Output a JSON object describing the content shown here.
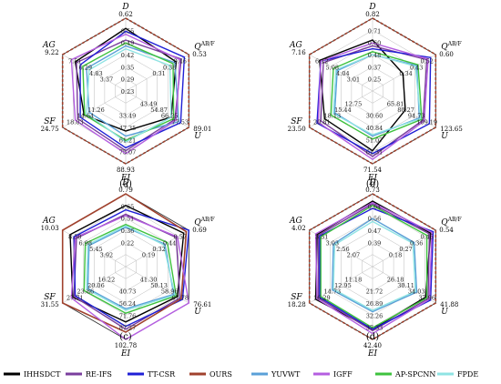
{
  "legend": [
    {
      "name": "IHHSDCT",
      "color": "#000000"
    },
    {
      "name": "RE-IFS",
      "color": "#7a3e9d"
    },
    {
      "name": "TT-CSR",
      "color": "#1f1fd6"
    },
    {
      "name": "OURS",
      "color": "#a0412d"
    },
    {
      "name": "YUVWT",
      "color": "#5aa0d8"
    },
    {
      "name": "IGFF",
      "color": "#b45ee0"
    },
    {
      "name": "AP-SPCNN",
      "color": "#3ec23e"
    },
    {
      "name": "FPDE",
      "color": "#8fe3e3"
    }
  ],
  "axis_names": [
    "D",
    "Q^AB/F",
    "U",
    "EI",
    "SF",
    "AG"
  ],
  "chart_data": [
    {
      "type": "radar",
      "panel_label": "(a)",
      "axes": [
        "D",
        "Q^AB/F",
        "U",
        "EI",
        "SF",
        "AG"
      ],
      "outer_labels": [
        "0.62",
        "0.53",
        "89.01",
        "88.93",
        "24.75",
        "9.22"
      ],
      "ring_labels": {
        "D": [
          "0.55",
          "0.49",
          "0.42",
          "0.35",
          "0.29",
          "0.23"
        ],
        "Q^AB/F": [
          "0.46",
          "0.38",
          "0.31"
        ],
        "U": [
          "77.53",
          "66.25",
          "54.87",
          "43.49"
        ],
        "EI": [
          "75.07",
          "61.21",
          "47.35",
          "33.49"
        ],
        "SF": [
          "18.03",
          "14.64",
          "11.26"
        ],
        "AG": [
          "7.51",
          "6.29",
          "4.83",
          "3.37"
        ]
      },
      "series": [
        {
          "name": "IHHSDCT",
          "values": [
            0.86,
            0.8,
            0.72,
            0.55,
            0.66,
            0.8
          ]
        },
        {
          "name": "RE-IFS",
          "values": [
            0.7,
            0.88,
            0.78,
            0.82,
            0.76,
            0.78
          ]
        },
        {
          "name": "TT-CSR",
          "values": [
            0.82,
            0.93,
            0.87,
            0.78,
            0.72,
            0.72
          ]
        },
        {
          "name": "OURS",
          "values": [
            1.0,
            1.0,
            1.0,
            1.0,
            1.0,
            1.0
          ]
        },
        {
          "name": "YUVWT",
          "values": [
            0.62,
            0.78,
            0.84,
            0.62,
            0.58,
            0.62
          ]
        },
        {
          "name": "IGFF",
          "values": [
            0.78,
            0.86,
            0.8,
            0.86,
            0.8,
            0.86
          ]
        },
        {
          "name": "AP-SPCNN",
          "values": [
            0.66,
            0.75,
            0.76,
            0.68,
            0.65,
            0.68
          ]
        },
        {
          "name": "FPDE",
          "values": [
            0.58,
            0.7,
            0.72,
            0.7,
            0.62,
            0.58
          ]
        }
      ]
    },
    {
      "type": "radar",
      "panel_label": "(b)",
      "axes": [
        "D",
        "Q^AB/F",
        "U",
        "EI",
        "SF",
        "AG"
      ],
      "outer_labels": [
        "0.82",
        "0.60",
        "123.65",
        "71.54",
        "23.50",
        "7.16"
      ],
      "ring_labels": {
        "D": [
          "0.71",
          "0.60",
          "0.48",
          "0.37",
          "0.25"
        ],
        "Q^AB/F": [
          "0.52",
          "0.43",
          "0.34"
        ],
        "U": [
          "109.19",
          "94.73",
          "80.27",
          "65.81"
        ],
        "EI": [
          "61.31",
          "51.07",
          "40.84",
          "30.60"
        ],
        "SF": [
          "20.81",
          "18.13",
          "15.44",
          "12.75"
        ],
        "AG": [
          "6.12",
          "5.08",
          "4.04",
          "3.01"
        ]
      },
      "series": [
        {
          "name": "IHHSDCT",
          "values": [
            0.7,
            0.48,
            0.52,
            0.82,
            0.76,
            0.84
          ]
        },
        {
          "name": "RE-IFS",
          "values": [
            0.62,
            0.86,
            0.8,
            0.9,
            0.82,
            0.78
          ]
        },
        {
          "name": "TT-CSR",
          "values": [
            0.58,
            0.92,
            0.9,
            0.86,
            0.88,
            0.82
          ]
        },
        {
          "name": "OURS",
          "values": [
            1.0,
            1.0,
            1.0,
            1.0,
            1.0,
            1.0
          ]
        },
        {
          "name": "YUVWT",
          "values": [
            0.5,
            0.7,
            0.74,
            0.62,
            0.6,
            0.56
          ]
        },
        {
          "name": "IGFF",
          "values": [
            0.66,
            0.88,
            0.82,
            0.94,
            0.86,
            0.82
          ]
        },
        {
          "name": "AP-SPCNN",
          "values": [
            0.54,
            0.72,
            0.78,
            0.66,
            0.66,
            0.62
          ]
        },
        {
          "name": "FPDE",
          "values": [
            0.5,
            0.68,
            0.76,
            0.6,
            0.62,
            0.58
          ]
        }
      ]
    },
    {
      "type": "radar",
      "panel_label": "(c)",
      "axes": [
        "D",
        "Q^AB/F",
        "U",
        "EI",
        "SF",
        "AG"
      ],
      "outer_labels": [
        "0.79",
        "0.69",
        "76.61",
        "102.78",
        "31.55",
        "10.03"
      ],
      "ring_labels": {
        "D": [
          "0.65",
          "0.51",
          "0.36",
          "0.22"
        ],
        "Q^AB/F": [
          "0.57",
          "0.44",
          "0.32",
          "0.19"
        ],
        "U": [
          "67.78",
          "58.96",
          "50.13",
          "41.30"
        ],
        "EI": [
          "87.27",
          "71.76",
          "56.24",
          "40.73"
        ],
        "SF": [
          "27.71",
          "23.86",
          "20.06",
          "16.22"
        ],
        "AG": [
          "8.50",
          "6.98",
          "5.45",
          "3.92"
        ]
      },
      "series": [
        {
          "name": "IHHSDCT",
          "values": [
            0.84,
            0.92,
            0.82,
            0.76,
            0.84,
            0.88
          ]
        },
        {
          "name": "RE-IFS",
          "values": [
            0.72,
            0.8,
            0.86,
            0.86,
            0.82,
            0.78
          ]
        },
        {
          "name": "TT-CSR",
          "values": [
            0.78,
            1.0,
            0.9,
            0.82,
            0.8,
            0.82
          ]
        },
        {
          "name": "OURS",
          "values": [
            1.0,
            0.96,
            0.88,
            0.9,
            1.0,
            1.0
          ]
        },
        {
          "name": "YUVWT",
          "values": [
            0.54,
            0.62,
            0.76,
            0.58,
            0.6,
            0.58
          ]
        },
        {
          "name": "IGFF",
          "values": [
            0.7,
            0.82,
            1.0,
            1.0,
            0.86,
            0.8
          ]
        },
        {
          "name": "AP-SPCNN",
          "values": [
            0.58,
            0.66,
            0.8,
            0.64,
            0.66,
            0.64
          ]
        },
        {
          "name": "FPDE",
          "values": [
            0.56,
            0.6,
            0.78,
            0.6,
            0.62,
            0.6
          ]
        }
      ]
    },
    {
      "type": "radar",
      "panel_label": "(d)",
      "axes": [
        "D",
        "Q^AB/F",
        "U",
        "EI",
        "SF",
        "AG"
      ],
      "outer_labels": [
        "0.73",
        "0.54",
        "41.88",
        "42.40",
        "18.28",
        "4.02"
      ],
      "ring_labels": {
        "D": [
          "0.64",
          "0.56",
          "0.47",
          "0.39"
        ],
        "Q^AB/F": [
          "0.45",
          "0.36",
          "0.27",
          "0.18"
        ],
        "U": [
          "37.96",
          "34.03",
          "30.11",
          "26.18"
        ],
        "EI": [
          "37.33",
          "32.26",
          "26.89",
          "21.72"
        ],
        "SF": [
          "16.29",
          "14.73",
          "12.95",
          "11.18"
        ],
        "AG": [
          "3.51",
          "3.03",
          "2.56",
          "2.07"
        ]
      },
      "series": [
        {
          "name": "IHHSDCT",
          "values": [
            0.9,
            0.92,
            0.84,
            0.86,
            0.9,
            0.88
          ]
        },
        {
          "name": "RE-IFS",
          "values": [
            0.86,
            0.9,
            0.88,
            0.88,
            0.86,
            0.86
          ]
        },
        {
          "name": "TT-CSR",
          "values": [
            0.8,
            0.96,
            0.92,
            0.86,
            0.84,
            0.84
          ]
        },
        {
          "name": "OURS",
          "values": [
            1.0,
            1.0,
            1.0,
            1.0,
            1.0,
            1.0
          ]
        },
        {
          "name": "YUVWT",
          "values": [
            0.66,
            0.66,
            0.7,
            0.62,
            0.64,
            0.62
          ]
        },
        {
          "name": "IGFF",
          "values": [
            0.88,
            0.94,
            0.9,
            0.92,
            0.88,
            0.9
          ]
        },
        {
          "name": "AP-SPCNN",
          "values": [
            0.84,
            0.86,
            0.86,
            0.84,
            0.82,
            0.82
          ]
        },
        {
          "name": "FPDE",
          "values": [
            0.62,
            0.64,
            0.68,
            0.6,
            0.62,
            0.6
          ]
        }
      ]
    }
  ]
}
